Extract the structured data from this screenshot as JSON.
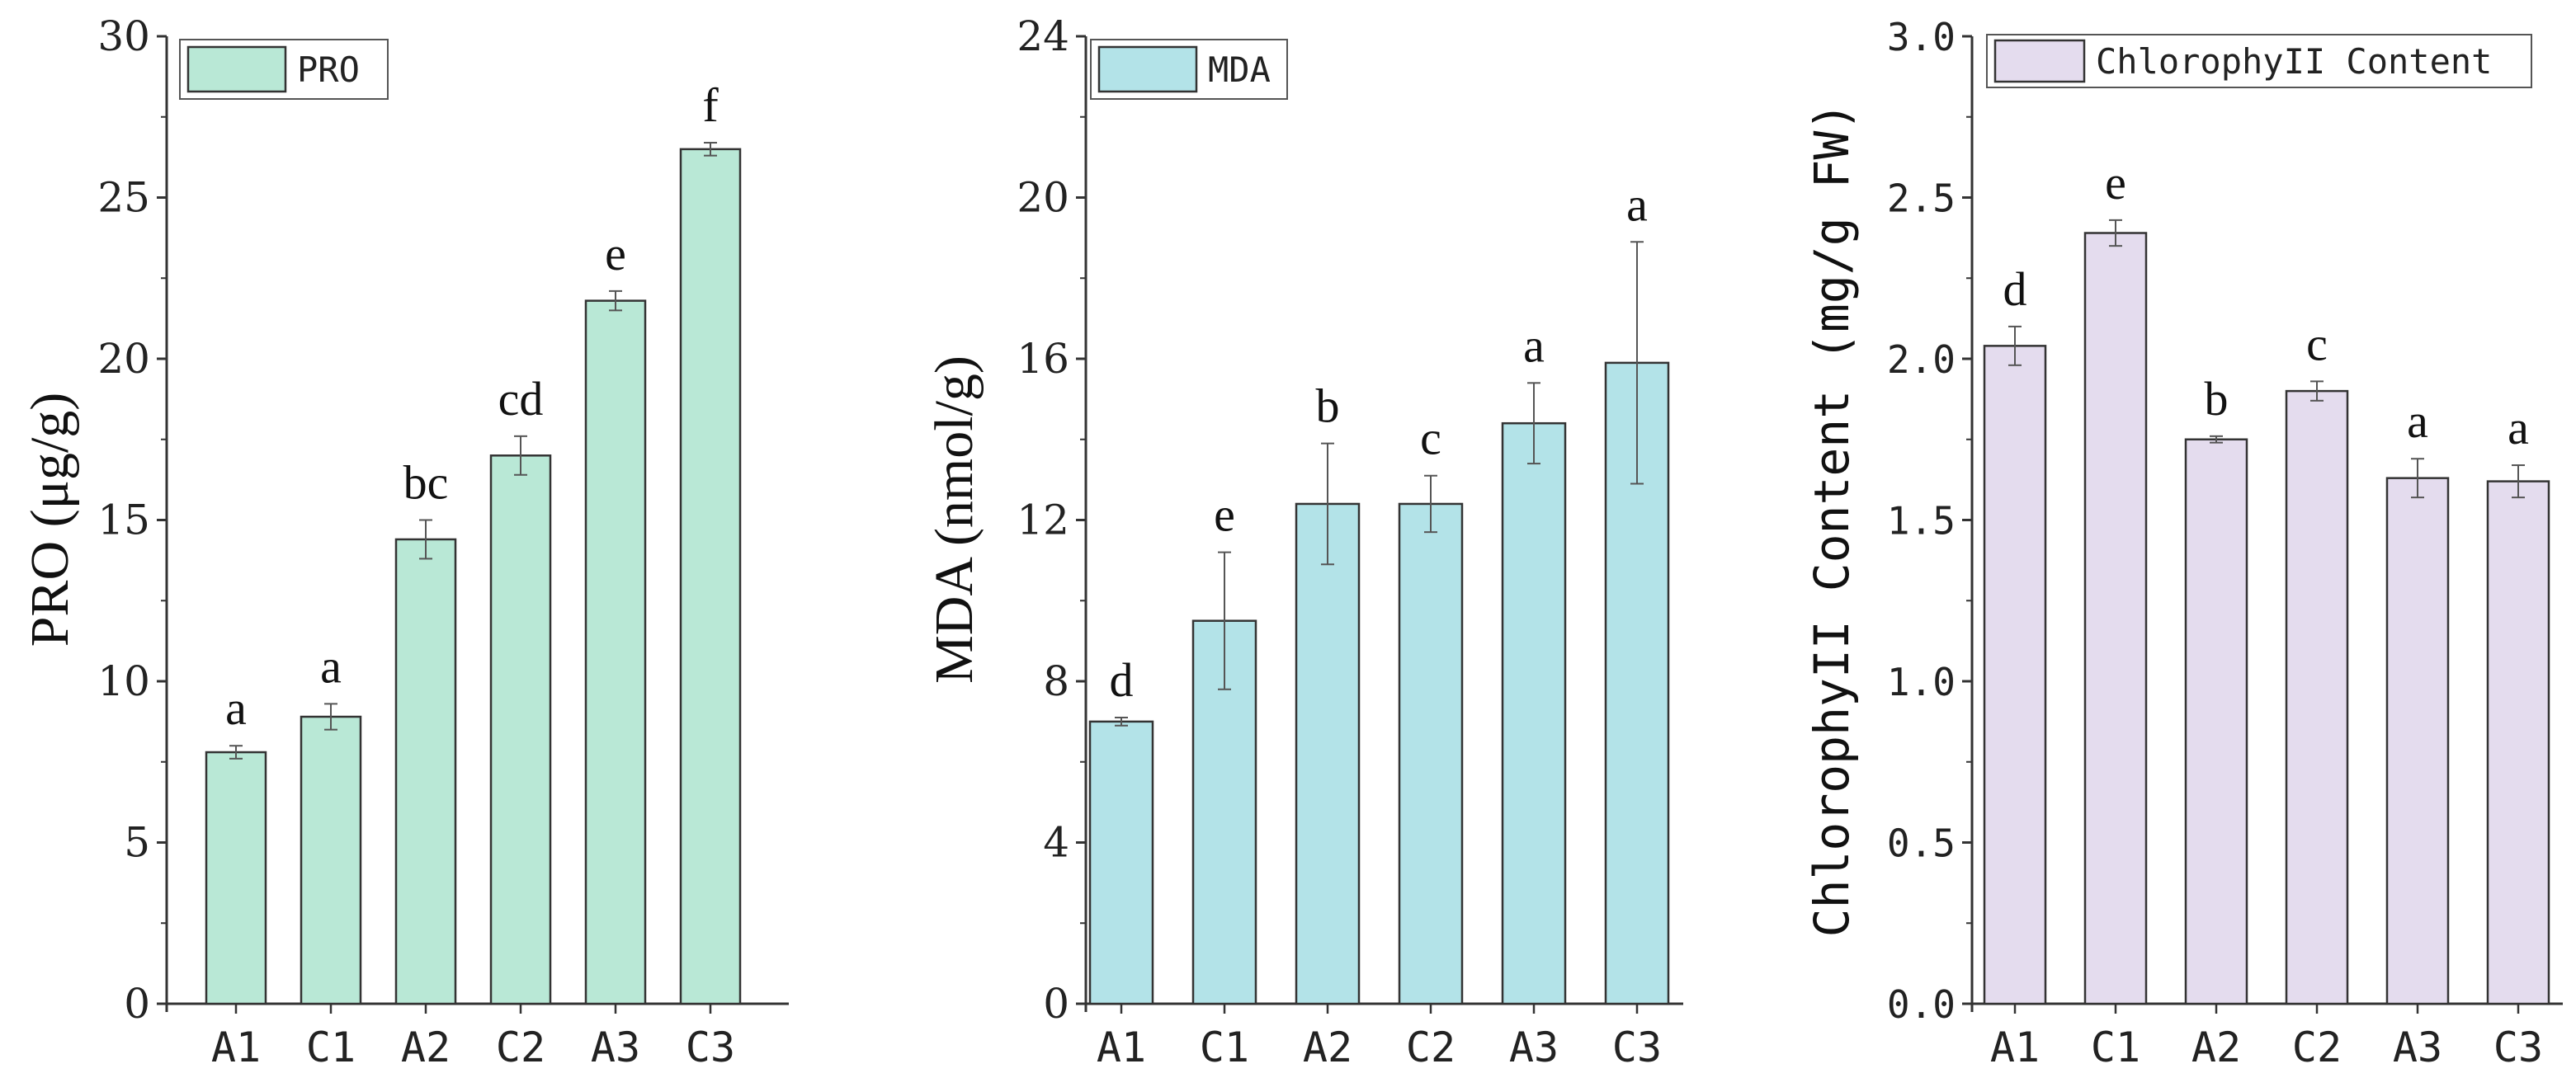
{
  "chart_data": [
    {
      "type": "bar",
      "categories": [
        "A1",
        "C1",
        "A2",
        "C2",
        "A3",
        "C3"
      ],
      "values": [
        7.8,
        8.9,
        14.4,
        17.0,
        21.8,
        26.5
      ],
      "errors": [
        0.2,
        0.4,
        0.6,
        0.6,
        0.3,
        0.2
      ],
      "significance": [
        "a",
        "a",
        "bc",
        "cd",
        "e",
        "f"
      ],
      "ylabel": "PRO (μg/g)",
      "ylim": [
        0,
        30
      ],
      "yticks": [
        "0",
        "5",
        "10",
        "15",
        "20",
        "25",
        "30"
      ],
      "legend": "PRO",
      "legend_position": "top-left",
      "color": "#B9E8D6"
    },
    {
      "type": "bar",
      "categories": [
        "A1",
        "C1",
        "A2",
        "C2",
        "A3",
        "C3"
      ],
      "values": [
        7.0,
        9.5,
        12.4,
        12.4,
        14.4,
        15.9
      ],
      "errors": [
        0.1,
        1.7,
        1.5,
        0.7,
        1.0,
        3.0
      ],
      "significance": [
        "d",
        "e",
        "b",
        "c",
        "a",
        "a"
      ],
      "ylabel": "MDA (nmol/g)",
      "ylim": [
        0,
        24
      ],
      "yticks": [
        "0",
        "4",
        "8",
        "12",
        "16",
        "20",
        "24"
      ],
      "legend": "MDA",
      "legend_position": "top-left",
      "color": "#B3E3E8"
    },
    {
      "type": "bar",
      "categories": [
        "A1",
        "C1",
        "A2",
        "C2",
        "A3",
        "C3"
      ],
      "values": [
        2.04,
        2.39,
        1.75,
        1.9,
        1.63,
        1.62
      ],
      "errors": [
        0.06,
        0.04,
        0.01,
        0.03,
        0.06,
        0.05
      ],
      "significance": [
        "d",
        "e",
        "b",
        "c",
        "a",
        "a"
      ],
      "ylabel": "ChlorophyII Content (mg/g FW)",
      "ylim": [
        0,
        3.0
      ],
      "yticks": [
        "0.0",
        "0.5",
        "1.0",
        "1.5",
        "2.0",
        "2.5",
        "3.0"
      ],
      "legend": "ChlorophyII Content",
      "legend_position": "top-left",
      "color": "#E4DCEE"
    }
  ]
}
